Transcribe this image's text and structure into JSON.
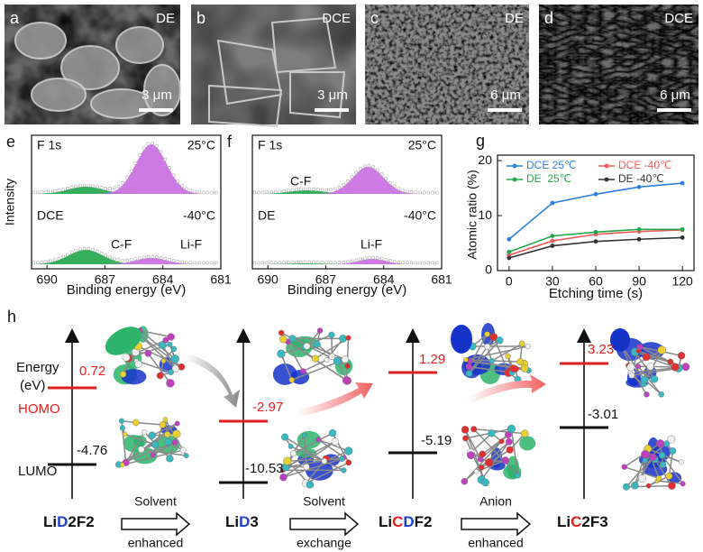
{
  "sem": [
    {
      "label": "a",
      "sample": "DE",
      "scale": "3 μm"
    },
    {
      "label": "b",
      "sample": "DCE",
      "scale": "3 μm"
    },
    {
      "label": "c",
      "sample": "DE",
      "scale": "6 μm"
    },
    {
      "label": "d",
      "sample": "DCE",
      "scale": "6 μm"
    }
  ],
  "xps_axis": {
    "xlim": [
      690.8,
      681
    ],
    "xticks": [
      690,
      687,
      684,
      681
    ],
    "xlabel": "Binding energy (eV)",
    "ylabel": "Intensity"
  },
  "xps": [
    {
      "label": "e",
      "element": "F 1s",
      "temp_top": "25°C",
      "sample_bottom": "DCE",
      "temp_bottom": "-40°C",
      "peaks_top": [],
      "peaks_bottom": [
        "C-F",
        "Li-F"
      ]
    },
    {
      "label": "f",
      "element": "F 1s",
      "temp_top": "25°C",
      "sample_bottom": "DE",
      "temp_bottom": "-40°C",
      "peaks_top": [
        "C-F"
      ],
      "peaks_bottom": [
        "Li-F"
      ]
    }
  ],
  "chart_data": {
    "type": "line",
    "panel_label": "g",
    "x_label": "Etching time (s)",
    "y_label": "Atomic ratio (%)",
    "x": [
      0,
      30,
      60,
      90,
      120
    ],
    "xlim": [
      -8,
      128
    ],
    "xticks": [
      0,
      30,
      60,
      90,
      120
    ],
    "ylim": [
      0,
      21
    ],
    "yticks": [
      0,
      10,
      20
    ],
    "series": [
      {
        "name": "DCE 25℃",
        "color": "#2f7fe0",
        "values": [
          5.7,
          12.3,
          13.9,
          15.2,
          15.9
        ]
      },
      {
        "name": "DCE -40℃",
        "color": "#ef5a5a",
        "values": [
          2.8,
          5.4,
          6.6,
          7.1,
          7.4
        ]
      },
      {
        "name": "DE  25℃",
        "color": "#22a84a",
        "values": [
          3.4,
          6.3,
          7.0,
          7.5,
          7.5
        ]
      },
      {
        "name": "DE -40℃",
        "color": "#333333",
        "values": [
          2.3,
          4.5,
          5.3,
          5.7,
          6.0
        ]
      }
    ]
  },
  "energy": {
    "label": "h",
    "axis_label": [
      "Energy",
      "(eV)"
    ],
    "homo": "HOMO",
    "lumo": "LUMO",
    "systems": [
      {
        "name": [
          {
            "text": "Li",
            "color": "#111111"
          },
          {
            "text": "D",
            "color": "#1f3fd0"
          },
          {
            "text": "2F2",
            "color": "#111111"
          }
        ],
        "homo": 0.72,
        "lumo": -4.76
      },
      {
        "name": [
          {
            "text": "Li",
            "color": "#111111"
          },
          {
            "text": "D",
            "color": "#1f3fd0"
          },
          {
            "text": "3",
            "color": "#111111"
          }
        ],
        "homo": -2.97,
        "lumo": -10.53
      },
      {
        "name": [
          {
            "text": "Li",
            "color": "#111111"
          },
          {
            "text": "C",
            "color": "#e02020"
          },
          {
            "text": "D",
            "color": "#1f3fd0"
          },
          {
            "text": "F2",
            "color": "#111111"
          }
        ],
        "homo": 1.29,
        "lumo": -5.19
      },
      {
        "name": [
          {
            "text": "Li",
            "color": "#111111"
          },
          {
            "text": "C",
            "color": "#e02020"
          },
          {
            "text": "2F3",
            "color": "#111111"
          }
        ],
        "homo": 3.23,
        "lumo": -3.01
      }
    ],
    "steps": [
      [
        "Solvent",
        "enhanced"
      ],
      [
        "Solvent",
        "exchange"
      ],
      [
        "Anion",
        "enhanced"
      ]
    ]
  }
}
